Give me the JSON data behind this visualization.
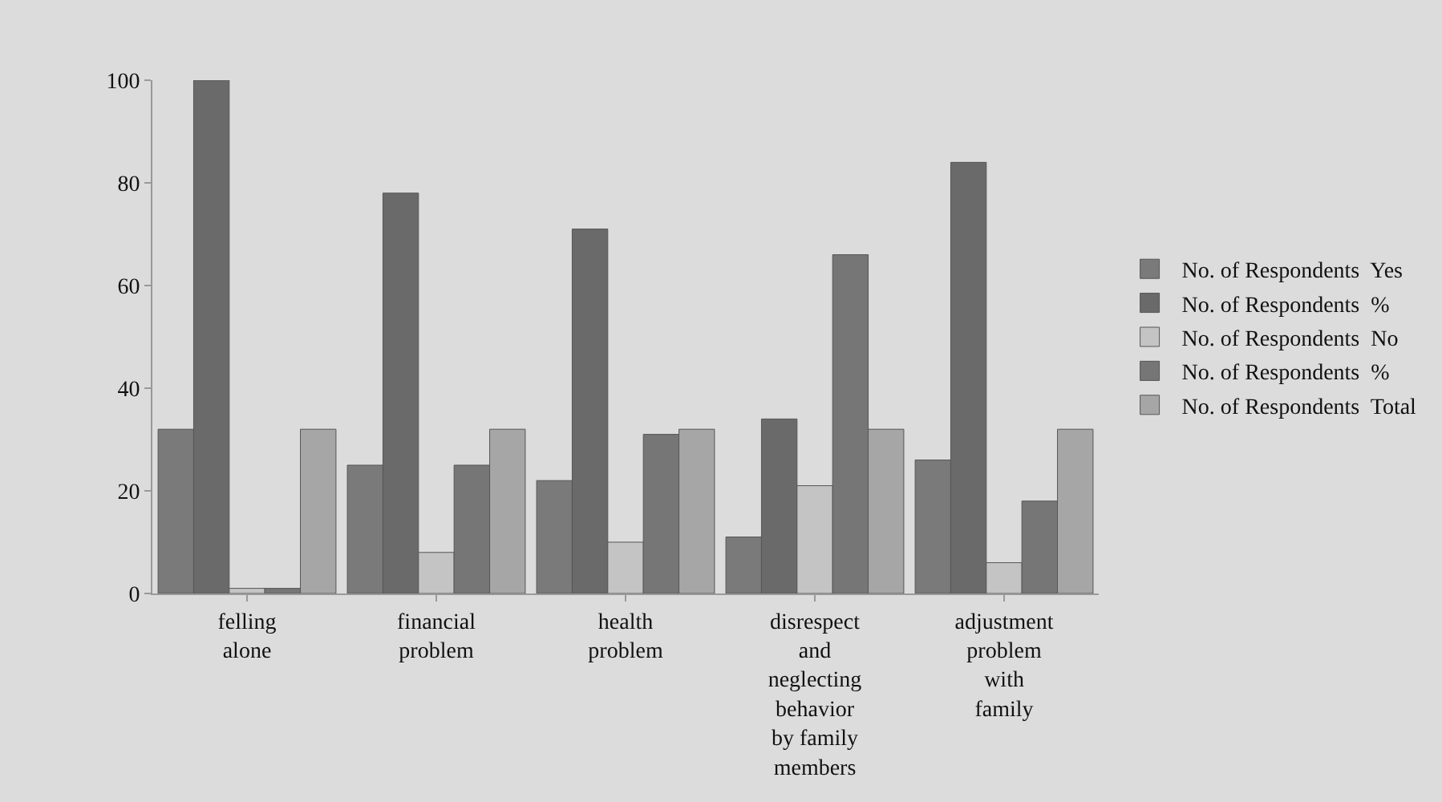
{
  "chart_data": {
    "type": "bar",
    "categories": [
      "felling alone",
      "financial problem",
      "health problem",
      "disrespect and neglecting behavior by family members",
      "adjustment problem with family"
    ],
    "series": [
      {
        "name": "No. of Respondents  Yes",
        "color": "#7a7a7a",
        "values": [
          32,
          25,
          22,
          11,
          26
        ]
      },
      {
        "name": "No. of Respondents  %",
        "color": "#6a6a6a",
        "values": [
          100,
          78,
          71,
          34,
          84
        ]
      },
      {
        "name": "No. of Respondents  No",
        "color": "#c4c4c4",
        "values": [
          1,
          8,
          10,
          21,
          6
        ]
      },
      {
        "name": "No. of Respondents  %",
        "color": "#767676",
        "values": [
          1,
          25,
          31,
          66,
          18
        ]
      },
      {
        "name": "No. of Respondents  Total",
        "color": "#a6a6a6",
        "values": [
          32,
          32,
          32,
          32,
          32
        ]
      }
    ],
    "ylim": [
      0,
      100
    ],
    "yticks": [
      0,
      20,
      40,
      60,
      80,
      100
    ],
    "grid": false,
    "legend": "right"
  }
}
